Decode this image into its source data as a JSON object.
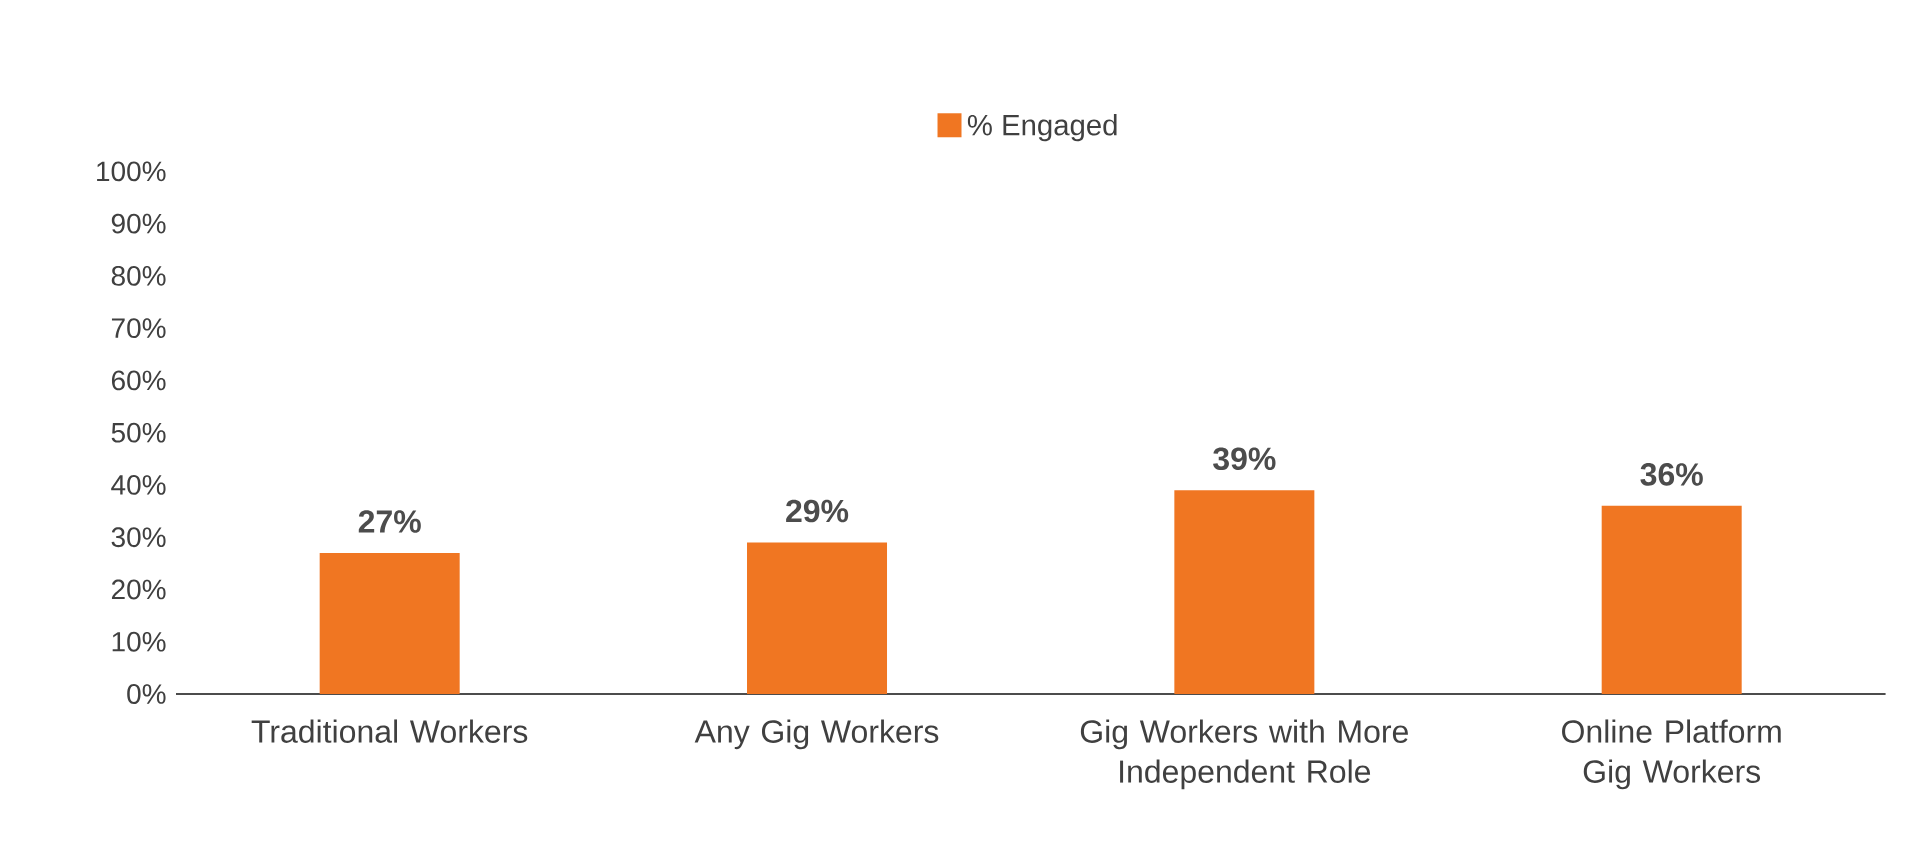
{
  "chart_data": {
    "type": "bar",
    "categories": [
      "Traditional Workers",
      "Any Gig Workers",
      "Gig Workers with More Independent Role",
      "Online Platform Gig Workers"
    ],
    "series": [
      {
        "name": "% Engaged",
        "color": "#f07622",
        "values": [
          27,
          29,
          39,
          36
        ],
        "value_labels": [
          "27%",
          "29%",
          "39%",
          "36%"
        ]
      }
    ],
    "ylim": [
      0,
      100
    ],
    "yticks": [
      {
        "value": 0,
        "label": "0%"
      },
      {
        "value": 10,
        "label": "10%"
      },
      {
        "value": 20,
        "label": "20%"
      },
      {
        "value": 30,
        "label": "30%"
      },
      {
        "value": 40,
        "label": "40%"
      },
      {
        "value": 50,
        "label": "50%"
      },
      {
        "value": 60,
        "label": "60%"
      },
      {
        "value": 70,
        "label": "70%"
      },
      {
        "value": 80,
        "label": "80%"
      },
      {
        "value": 90,
        "label": "90%"
      },
      {
        "value": 100,
        "label": "100%"
      }
    ],
    "legend": "top"
  }
}
